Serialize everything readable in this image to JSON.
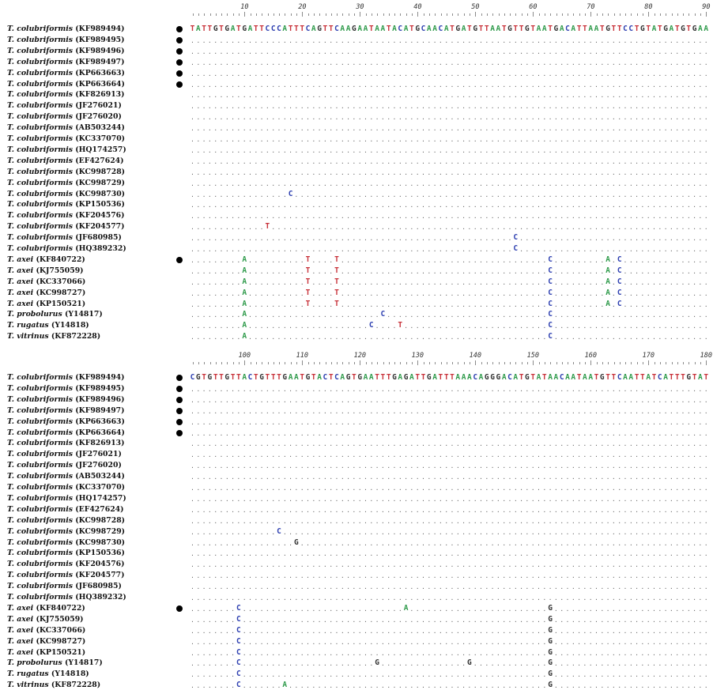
{
  "blocks": [
    {
      "start": 1,
      "ruler_labels": [
        10,
        20,
        30,
        40,
        50,
        60,
        70,
        80,
        90
      ],
      "reference": "TATTGTGATGATTCCCATTTCAGTTCAAGAATAATACATGCAACATGATGTTAATGTTGTAATGACATTAATGTTCCTGTATGATGTGAA",
      "rows": [
        {
          "species": "T. colubriformis",
          "accession": "(KF989494)",
          "dot": true,
          "diffs": []
        },
        {
          "species": "T. colubriformis",
          "accession": "(KF989495)",
          "dot": true,
          "diffs": []
        },
        {
          "species": "T. colubriformis",
          "accession": "(KF989496)",
          "dot": true,
          "diffs": []
        },
        {
          "species": "T. colubriformis",
          "accession": "(KF989497)",
          "dot": true,
          "diffs": []
        },
        {
          "species": "T. colubriformis",
          "accession": "(KP663663)",
          "dot": true,
          "diffs": []
        },
        {
          "species": "T. colubriformis",
          "accession": "(KP663664)",
          "dot": true,
          "diffs": []
        },
        {
          "species": "T. colubriformis",
          "accession": "(KF826913)",
          "dot": false,
          "diffs": []
        },
        {
          "species": "T. colubriformis",
          "accession": "(JF276021)",
          "dot": false,
          "diffs": []
        },
        {
          "species": "T. colubriformis",
          "accession": "(JF276020)",
          "dot": false,
          "diffs": []
        },
        {
          "species": "T. colubriformis",
          "accession": "(AB503244)",
          "dot": false,
          "diffs": []
        },
        {
          "species": "T. colubriformis",
          "accession": "(KC337070)",
          "dot": false,
          "diffs": []
        },
        {
          "species": "T. colubriformis",
          "accession": "(HQ174257)",
          "dot": false,
          "diffs": []
        },
        {
          "species": "T. colubriformis",
          "accession": "(EF427624)",
          "dot": false,
          "diffs": []
        },
        {
          "species": "T. colubriformis",
          "accession": "(KC998728)",
          "dot": false,
          "diffs": []
        },
        {
          "species": "T. colubriformis",
          "accession": "(KC998729)",
          "dot": false,
          "diffs": []
        },
        {
          "species": "T. colubriformis",
          "accession": "(KC998730)",
          "dot": false,
          "diffs": [
            [
              18,
              "C"
            ]
          ]
        },
        {
          "species": "T. colubriformis",
          "accession": "(KP150536)",
          "dot": false,
          "diffs": []
        },
        {
          "species": "T. colubriformis",
          "accession": "(KF204576)",
          "dot": false,
          "diffs": []
        },
        {
          "species": "T. colubriformis",
          "accession": "(KF204577)",
          "dot": false,
          "diffs": [
            [
              14,
              "T"
            ]
          ]
        },
        {
          "species": "T. colubriformis",
          "accession": "(JF680985)",
          "dot": false,
          "diffs": [
            [
              57,
              "C"
            ]
          ]
        },
        {
          "species": "T. colubriformis",
          "accession": "(HQ389232)",
          "dot": false,
          "diffs": [
            [
              57,
              "C"
            ]
          ]
        },
        {
          "species": "T. axei",
          "accession": "(KF840722)",
          "dot": true,
          "diffs": [
            [
              10,
              "A"
            ],
            [
              21,
              "T"
            ],
            [
              26,
              "T"
            ],
            [
              63,
              "C"
            ],
            [
              73,
              "A"
            ],
            [
              75,
              "C"
            ]
          ]
        },
        {
          "species": "T. axei",
          "accession": "(KJ755059)",
          "dot": false,
          "diffs": [
            [
              10,
              "A"
            ],
            [
              21,
              "T"
            ],
            [
              26,
              "T"
            ],
            [
              63,
              "C"
            ],
            [
              73,
              "A"
            ],
            [
              75,
              "C"
            ]
          ]
        },
        {
          "species": "T. axei",
          "accession": "(KC337066)",
          "dot": false,
          "diffs": [
            [
              10,
              "A"
            ],
            [
              21,
              "T"
            ],
            [
              26,
              "T"
            ],
            [
              63,
              "C"
            ],
            [
              73,
              "A"
            ],
            [
              75,
              "C"
            ]
          ]
        },
        {
          "species": "T. axei",
          "accession": "(KC998727)",
          "dot": false,
          "diffs": [
            [
              10,
              "A"
            ],
            [
              21,
              "T"
            ],
            [
              26,
              "T"
            ],
            [
              63,
              "C"
            ],
            [
              73,
              "A"
            ],
            [
              75,
              "C"
            ]
          ]
        },
        {
          "species": "T. axei",
          "accession": "(KP150521)",
          "dot": false,
          "diffs": [
            [
              10,
              "A"
            ],
            [
              21,
              "T"
            ],
            [
              26,
              "T"
            ],
            [
              63,
              "C"
            ],
            [
              73,
              "A"
            ],
            [
              75,
              "C"
            ]
          ]
        },
        {
          "species": "T. probolurus",
          "accession": "(Y14817)",
          "dot": false,
          "diffs": [
            [
              10,
              "A"
            ],
            [
              34,
              "C"
            ],
            [
              63,
              "C"
            ]
          ]
        },
        {
          "species": "T. rugatus",
          "accession": "(Y14818)",
          "dot": false,
          "diffs": [
            [
              10,
              "A"
            ],
            [
              32,
              "C"
            ],
            [
              37,
              "T"
            ],
            [
              63,
              "C"
            ]
          ]
        },
        {
          "species": "T. vitrinus",
          "accession": "(KF872228)",
          "dot": false,
          "diffs": [
            [
              10,
              "A"
            ],
            [
              63,
              "C"
            ]
          ]
        }
      ]
    },
    {
      "start": 91,
      "ruler_labels": [
        100,
        110,
        120,
        130,
        140,
        150,
        160,
        170,
        180
      ],
      "reference": "CGTGTTGTTACTGTTTGAATGTACTCAGTGAATTTGAGATTGATTTAAACAGGGACATGTATAACAATAATGTTCAATTATCATTTGTAT",
      "rows": [
        {
          "species": "T. colubriformis",
          "accession": "(KF989494)",
          "dot": true,
          "diffs": []
        },
        {
          "species": "T. colubriformis",
          "accession": "(KF989495)",
          "dot": true,
          "diffs": []
        },
        {
          "species": "T. colubriformis",
          "accession": "(KF989496)",
          "dot": true,
          "diffs": []
        },
        {
          "species": "T. colubriformis",
          "accession": "(KF989497)",
          "dot": true,
          "diffs": []
        },
        {
          "species": "T. colubriformis",
          "accession": "(KP663663)",
          "dot": true,
          "diffs": []
        },
        {
          "species": "T. colubriformis",
          "accession": "(KP663664)",
          "dot": true,
          "diffs": []
        },
        {
          "species": "T. colubriformis",
          "accession": "(KF826913)",
          "dot": false,
          "diffs": []
        },
        {
          "species": "T. colubriformis",
          "accession": "(JF276021)",
          "dot": false,
          "diffs": []
        },
        {
          "species": "T. colubriformis",
          "accession": "(JF276020)",
          "dot": false,
          "diffs": []
        },
        {
          "species": "T. colubriformis",
          "accession": "(AB503244)",
          "dot": false,
          "diffs": []
        },
        {
          "species": "T. colubriformis",
          "accession": "(KC337070)",
          "dot": false,
          "diffs": []
        },
        {
          "species": "T. colubriformis",
          "accession": "(HQ174257)",
          "dot": false,
          "diffs": []
        },
        {
          "species": "T. colubriformis",
          "accession": "(EF427624)",
          "dot": false,
          "diffs": []
        },
        {
          "species": "T. colubriformis",
          "accession": "(KC998728)",
          "dot": false,
          "diffs": []
        },
        {
          "species": "T. colubriformis",
          "accession": "(KC998729)",
          "dot": false,
          "diffs": [
            [
              106,
              "C"
            ]
          ]
        },
        {
          "species": "T. colubriformis",
          "accession": "(KC998730)",
          "dot": false,
          "diffs": [
            [
              109,
              "G"
            ]
          ]
        },
        {
          "species": "T. colubriformis",
          "accession": "(KP150536)",
          "dot": false,
          "diffs": []
        },
        {
          "species": "T. colubriformis",
          "accession": "(KF204576)",
          "dot": false,
          "diffs": []
        },
        {
          "species": "T. colubriformis",
          "accession": "(KF204577)",
          "dot": false,
          "diffs": []
        },
        {
          "species": "T. colubriformis",
          "accession": "(JF680985)",
          "dot": false,
          "diffs": []
        },
        {
          "species": "T. colubriformis",
          "accession": "(HQ389232)",
          "dot": false,
          "diffs": []
        },
        {
          "species": "T. axei",
          "accession": "(KF840722)",
          "dot": true,
          "diffs": [
            [
              99,
              "C"
            ],
            [
              128,
              "A"
            ],
            [
              153,
              "G"
            ]
          ]
        },
        {
          "species": "T. axei",
          "accession": "(KJ755059)",
          "dot": false,
          "diffs": [
            [
              99,
              "C"
            ],
            [
              153,
              "G"
            ]
          ]
        },
        {
          "species": "T. axei",
          "accession": "(KC337066)",
          "dot": false,
          "diffs": [
            [
              99,
              "C"
            ],
            [
              153,
              "G"
            ]
          ]
        },
        {
          "species": "T. axei",
          "accession": "(KC998727)",
          "dot": false,
          "diffs": [
            [
              99,
              "C"
            ],
            [
              153,
              "G"
            ]
          ]
        },
        {
          "species": "T. axei",
          "accession": "(KP150521)",
          "dot": false,
          "diffs": [
            [
              99,
              "C"
            ],
            [
              153,
              "G"
            ]
          ]
        },
        {
          "species": "T. probolurus",
          "accession": "(Y14817)",
          "dot": false,
          "diffs": [
            [
              99,
              "C"
            ],
            [
              123,
              "G"
            ],
            [
              139,
              "G"
            ],
            [
              153,
              "G"
            ]
          ]
        },
        {
          "species": "T. rugatus",
          "accession": "(Y14818)",
          "dot": false,
          "diffs": [
            [
              99,
              "C"
            ],
            [
              153,
              "G"
            ]
          ]
        },
        {
          "species": "T. vitrinus",
          "accession": "(KF872228)",
          "dot": false,
          "diffs": [
            [
              99,
              "C"
            ],
            [
              107,
              "A"
            ],
            [
              153,
              "G"
            ]
          ]
        }
      ]
    }
  ],
  "base_colors": {
    "A": "#2e9a4a",
    "C": "#2d3fb0",
    "G": "#333333",
    "T": "#c8323a"
  }
}
